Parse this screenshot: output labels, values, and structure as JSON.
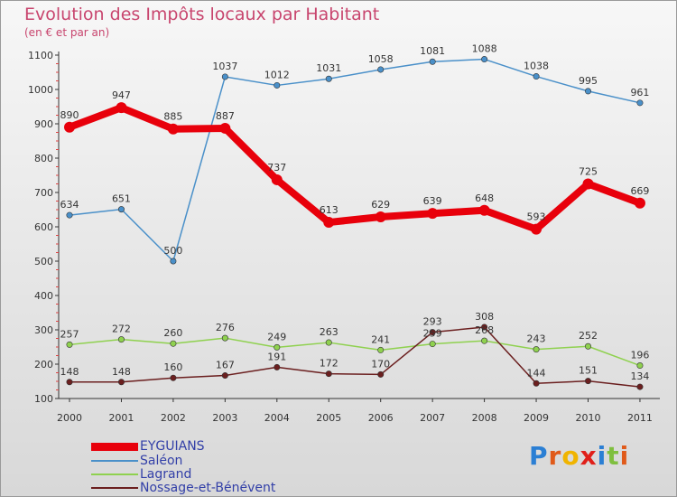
{
  "title": "Evolution des Impôts locaux par Habitant",
  "subtitle": "(en € et par an)",
  "logo": {
    "text": "Proxiti"
  },
  "chart_data": {
    "type": "line",
    "x": [
      "2000",
      "2001",
      "2002",
      "2003",
      "2004",
      "2005",
      "2006",
      "2007",
      "2008",
      "2009",
      "2010",
      "2011"
    ],
    "ylim": [
      100,
      1100
    ],
    "yticks": [
      100,
      200,
      300,
      400,
      500,
      600,
      700,
      800,
      900,
      1000,
      1100
    ],
    "grid": false,
    "legend_position": "bottom-left",
    "series": [
      {
        "name": "EYGUIANS",
        "color": "#e8000b",
        "values": [
          890,
          947,
          885,
          887,
          737,
          613,
          629,
          639,
          648,
          593,
          725,
          669
        ]
      },
      {
        "name": "Saléon",
        "color": "#4a90c9",
        "values": [
          634,
          651,
          500,
          1037,
          1012,
          1031,
          1058,
          1081,
          1088,
          1038,
          995,
          961
        ]
      },
      {
        "name": "Lagrand",
        "color": "#8fd14f",
        "values": [
          257,
          272,
          260,
          276,
          249,
          263,
          241,
          259,
          268,
          243,
          252,
          196
        ]
      },
      {
        "name": "Nossage-et-Bénévent",
        "color": "#6b1f1f",
        "values": [
          148,
          148,
          160,
          167,
          191,
          172,
          170,
          293,
          308,
          144,
          151,
          134
        ]
      }
    ]
  }
}
